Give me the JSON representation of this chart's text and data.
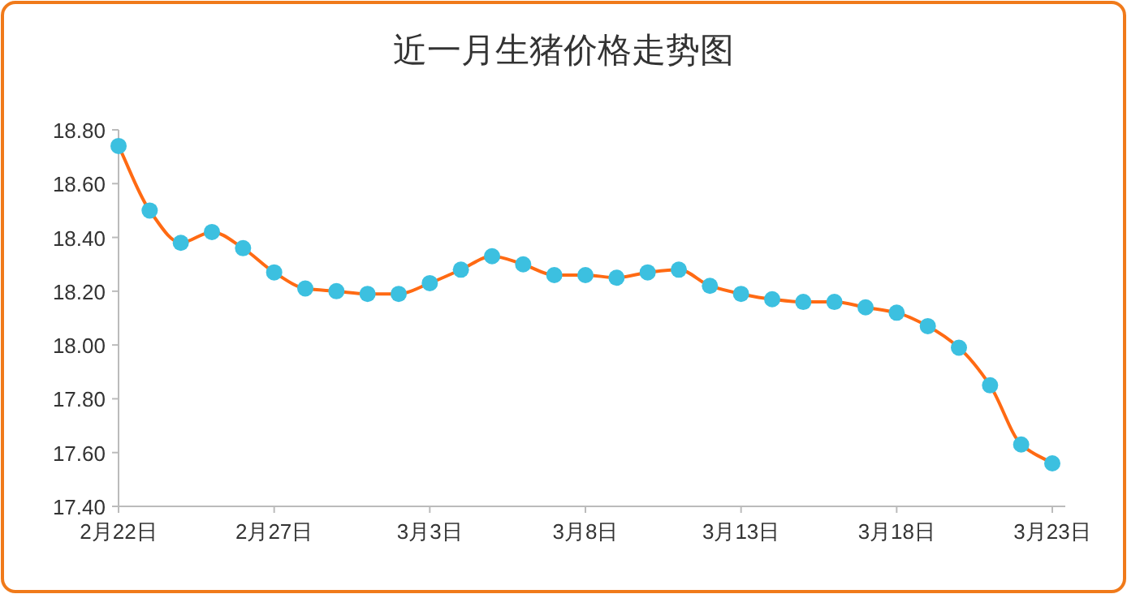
{
  "chart_data": {
    "type": "line",
    "title": "近一月生猪价格走势图",
    "categories": [
      "2月22日",
      null,
      null,
      null,
      null,
      "2月27日",
      null,
      null,
      null,
      null,
      "3月3日",
      null,
      null,
      null,
      null,
      "3月8日",
      null,
      null,
      null,
      null,
      "3月13日",
      null,
      null,
      null,
      null,
      "3月18日",
      null,
      null,
      null,
      null,
      "3月23日"
    ],
    "series": [
      {
        "color": "#ff6a13",
        "colors": [
          "#3cc0e0",
          "#3cc0e0",
          "#3cc0e0",
          "#3cc0e0",
          "#3cc0e0",
          "#3cc0e0",
          "#3cc0e0",
          "#3cc0e0",
          "#3cc0e0",
          "#3cc0e0",
          "#3cc0e0",
          "#3cc0e0",
          "#3cc0e0",
          "#3cc0e0",
          "#3cc0e0",
          "#3cc0e0",
          "#3cc0e0",
          "#3cc0e0",
          "#3cc0e0",
          "#3cc0e0",
          "#3cc0e0",
          "#3cc0e0",
          "#3cc0e0",
          "#3cc0e0",
          "#3cc0e0",
          "#3cc0e0",
          "#3cc0e0",
          "#3cc0e0",
          "#3cc0e0",
          "#3cc0e0",
          "#3cc0e0"
        ],
        "values": [
          18.74,
          18.5,
          18.38,
          18.42,
          18.36,
          18.27,
          18.21,
          18.2,
          18.19,
          18.19,
          18.23,
          18.28,
          18.33,
          18.3,
          18.26,
          18.26,
          18.25,
          18.27,
          18.28,
          18.22,
          18.19,
          18.17,
          18.16,
          18.16,
          18.14,
          18.12,
          18.07,
          17.99,
          17.85,
          17.63,
          17.56
        ]
      }
    ],
    "marker": "circle",
    "grid": false,
    "ylim": [
      17.4,
      18.8
    ],
    "yticks": [
      {
        "value": 17.4,
        "label": "17.40"
      },
      {
        "value": 17.6,
        "label": "17.60"
      },
      {
        "value": 17.8,
        "label": "17.80"
      },
      {
        "value": 18.0,
        "label": "18.00"
      },
      {
        "value": 18.2,
        "label": "18.20"
      },
      {
        "value": 18.4,
        "label": "18.40"
      },
      {
        "value": 18.6,
        "label": "18.60"
      },
      {
        "value": 18.8,
        "label": "18.80"
      }
    ]
  }
}
